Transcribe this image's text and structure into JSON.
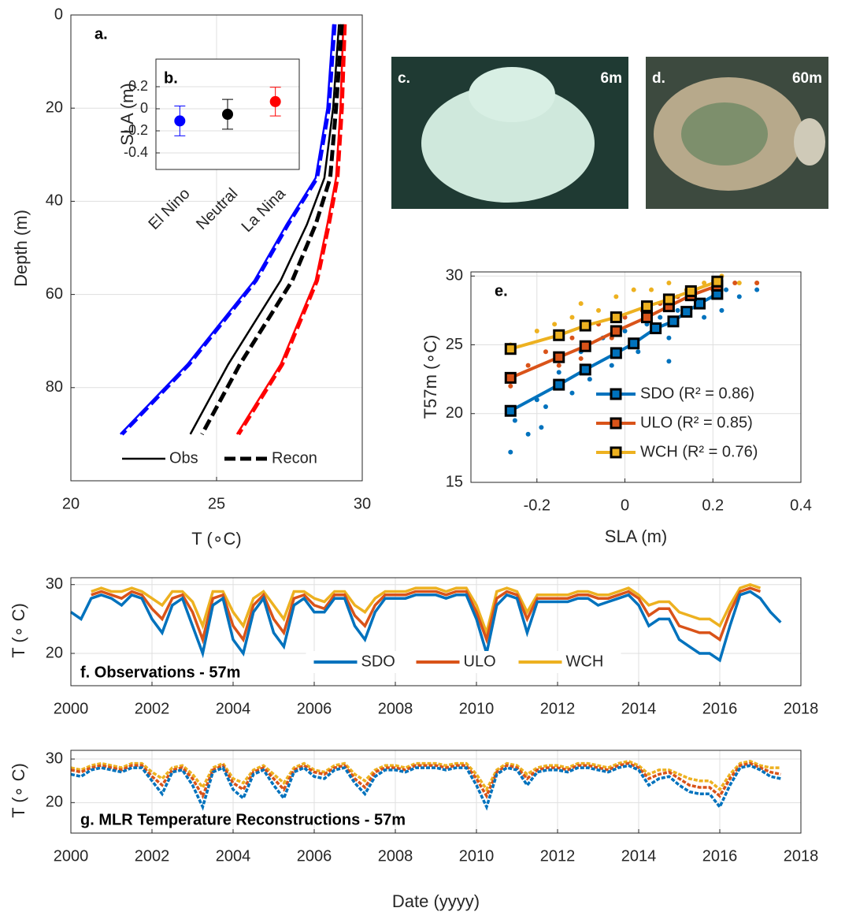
{
  "chart_data": [
    {
      "type": "line",
      "label": "a.",
      "xlabel": "T (∘C)",
      "ylabel": "Depth (m)",
      "xlim": [
        20,
        30
      ],
      "ylim": [
        0,
        100
      ],
      "yreverse": true,
      "xticks": [
        20,
        25,
        30
      ],
      "yticks": [
        0,
        20,
        40,
        60,
        80
      ],
      "grid": true,
      "legend": [
        {
          "label": "Obs",
          "dash": false
        },
        {
          "label": "Recon",
          "dash": true
        }
      ],
      "legend_loc": "south",
      "series": [
        {
          "color": "#0000ff",
          "dash": false,
          "x": [
            29.0,
            28.8,
            28.4,
            27.4,
            26.3,
            24.0,
            21.7
          ],
          "y": [
            2,
            20,
            35,
            45,
            57,
            75,
            90
          ]
        },
        {
          "color": "#0000ff",
          "dash": true,
          "x": [
            29.05,
            28.85,
            28.45,
            27.45,
            26.35,
            24.05,
            21.75
          ],
          "y": [
            2,
            20,
            35,
            45,
            57,
            75,
            90
          ]
        },
        {
          "color": "#000000",
          "dash": false,
          "x": [
            29.2,
            29.0,
            28.7,
            28.1,
            27.2,
            25.4,
            24.1
          ],
          "y": [
            2,
            20,
            35,
            45,
            57,
            75,
            90
          ]
        },
        {
          "color": "#000000",
          "dash": true,
          "x": [
            29.3,
            29.1,
            28.9,
            28.4,
            27.6,
            25.8,
            24.5
          ],
          "y": [
            2,
            20,
            35,
            45,
            57,
            75,
            90
          ]
        },
        {
          "color": "#ff0000",
          "dash": false,
          "x": [
            29.35,
            29.25,
            29.1,
            28.8,
            28.4,
            27.2,
            25.7
          ],
          "y": [
            2,
            20,
            35,
            45,
            57,
            75,
            90
          ]
        },
        {
          "color": "#ff0000",
          "dash": true,
          "x": [
            29.4,
            29.3,
            29.15,
            28.85,
            28.45,
            27.25,
            25.75
          ],
          "y": [
            2,
            20,
            35,
            45,
            57,
            75,
            90
          ]
        }
      ]
    },
    {
      "type": "errorbar",
      "label": "b.",
      "ylabel": "SLA (m)",
      "inset": true,
      "categories": [
        "El Nino",
        "Neutral",
        "La Nina"
      ],
      "values": [
        -0.11,
        -0.05,
        0.065
      ],
      "errors": [
        0.135,
        0.135,
        0.13
      ],
      "colors": [
        "#0000ff",
        "#000000",
        "#ff0000"
      ],
      "ylim": [
        -0.55,
        0.45
      ],
      "yticks": [
        -0.4,
        -0.2,
        0,
        0.2
      ],
      "grid": true
    },
    {
      "type": "scatter",
      "label": "e.",
      "xlabel": "SLA (m)",
      "ylabel": "T57m (∘C)",
      "xlim": [
        -0.35,
        0.4
      ],
      "ylim": [
        15,
        30.3
      ],
      "xticks": [
        -0.2,
        0,
        0.2,
        0.4
      ],
      "yticks": [
        15,
        20,
        25,
        30
      ],
      "grid": true,
      "legend_loc": "southeast",
      "series": [
        {
          "name": "SDO (R² = 0.86)",
          "color": "#0072bd",
          "x": [
            -0.26,
            -0.15,
            -0.09,
            -0.02,
            0.02,
            0.07,
            0.11,
            0.14,
            0.17,
            0.21
          ],
          "y": [
            20.2,
            22.1,
            23.2,
            24.4,
            25.1,
            26.2,
            26.7,
            27.4,
            28.0,
            28.7
          ],
          "scatter_x": [
            -0.26,
            -0.25,
            -0.22,
            -0.2,
            -0.18,
            -0.15,
            -0.12,
            -0.1,
            -0.08,
            -0.05,
            -0.03,
            0,
            0.03,
            0.05,
            0.08,
            0.1,
            0.12,
            0.15,
            0.18,
            0.2,
            0.23,
            0.26,
            0.3,
            0.22,
            0.1,
            -0.19
          ],
          "scatter_y": [
            17.2,
            19.5,
            18.5,
            21,
            20.5,
            23,
            21.5,
            24.5,
            22.5,
            25.5,
            23.5,
            26,
            24.5,
            26.5,
            27,
            25.5,
            27.5,
            28.5,
            27,
            28.5,
            29,
            28.5,
            29,
            27.5,
            23.8,
            19
          ]
        },
        {
          "name": "ULO (R² = 0.85)",
          "color": "#d95319",
          "x": [
            -0.26,
            -0.15,
            -0.09,
            -0.02,
            0.05,
            0.1,
            0.15,
            0.21
          ],
          "y": [
            22.6,
            24.1,
            24.9,
            26.0,
            27.0,
            27.8,
            28.6,
            29.3
          ],
          "scatter_x": [
            -0.26,
            -0.22,
            -0.18,
            -0.15,
            -0.12,
            -0.1,
            -0.06,
            -0.03,
            0,
            0.04,
            0.08,
            0.12,
            0.16,
            0.2,
            0.25,
            0.3
          ],
          "scatter_y": [
            22,
            23.5,
            24.5,
            23.5,
            25.5,
            24,
            26.5,
            25.5,
            27,
            27.5,
            28,
            28.5,
            29,
            29,
            29.5,
            29.5
          ]
        },
        {
          "name": "WCH (R² = 0.76)",
          "color": "#edb120",
          "x": [
            -0.26,
            -0.15,
            -0.09,
            -0.02,
            0.05,
            0.1,
            0.15,
            0.21
          ],
          "y": [
            24.7,
            25.7,
            26.4,
            27.0,
            27.8,
            28.3,
            28.9,
            29.6
          ],
          "scatter_x": [
            -0.26,
            -0.2,
            -0.16,
            -0.12,
            -0.1,
            -0.06,
            -0.02,
            0.02,
            0.06,
            0.1,
            0.14,
            0.18,
            0.22,
            0.26,
            0.3
          ],
          "scatter_y": [
            25,
            26,
            26.5,
            27,
            28,
            27.5,
            28.5,
            29,
            29,
            29.5,
            29,
            29.5,
            30,
            29.5,
            29.5
          ]
        }
      ]
    },
    {
      "type": "line",
      "title": "f. Observations - 57m",
      "ylabel": "T (∘ C)",
      "xlim": [
        2000,
        2018
      ],
      "ylim": [
        15.3,
        31
      ],
      "xticks": [
        2000,
        2002,
        2004,
        2006,
        2008,
        2010,
        2012,
        2014,
        2016,
        2018
      ],
      "yticks": [
        20,
        30
      ],
      "grid": true,
      "legend_loc": "south",
      "x": [
        2000,
        2000.25,
        2000.5,
        2000.75,
        2001,
        2001.25,
        2001.5,
        2001.75,
        2002,
        2002.25,
        2002.5,
        2002.75,
        2003,
        2003.25,
        2003.5,
        2003.75,
        2004,
        2004.25,
        2004.5,
        2004.75,
        2005,
        2005.25,
        2005.5,
        2005.75,
        2006,
        2006.25,
        2006.5,
        2006.75,
        2007,
        2007.25,
        2007.5,
        2007.75,
        2008,
        2008.25,
        2008.5,
        2008.75,
        2009,
        2009.25,
        2009.5,
        2009.75,
        2010,
        2010.25,
        2010.5,
        2010.75,
        2011,
        2011.25,
        2011.5,
        2011.75,
        2012,
        2012.25,
        2012.5,
        2012.75,
        2013,
        2013.25,
        2013.5,
        2013.75,
        2014,
        2014.25,
        2014.5,
        2014.75,
        2015,
        2015.25,
        2015.5,
        2015.75,
        2016,
        2016.25,
        2016.5,
        2016.75,
        2017,
        2017.25,
        2017.5
      ],
      "series": [
        {
          "name": "SDO",
          "color": "#0072bd",
          "dash": false,
          "values": [
            26,
            25,
            28,
            28.5,
            28,
            27,
            28.5,
            28,
            25,
            23,
            27,
            28,
            24,
            20,
            27,
            28,
            22,
            20,
            26,
            28,
            23,
            21,
            27,
            28,
            26,
            26,
            28,
            28,
            24,
            22,
            26,
            28,
            28,
            28,
            28.5,
            28.5,
            28.5,
            28,
            28.5,
            28.5,
            25,
            20,
            27,
            28.5,
            28,
            23,
            27.5,
            27.5,
            27.5,
            27.5,
            28,
            28,
            27,
            27.5,
            28,
            28.5,
            27,
            24,
            25,
            25,
            22,
            21,
            20,
            20,
            19,
            24,
            28.5,
            29,
            28,
            26,
            24.5
          ]
        },
        {
          "name": "ULO",
          "color": "#d95319",
          "dash": false,
          "values": [
            null,
            null,
            28.5,
            29,
            28.5,
            28,
            29,
            28.5,
            26.5,
            25,
            28,
            28.5,
            26,
            22,
            28,
            28.5,
            24,
            22,
            27,
            28.5,
            25,
            23,
            28,
            28.5,
            27,
            26.5,
            28.5,
            28.5,
            25.5,
            24,
            27,
            28.5,
            28.5,
            28.5,
            29,
            29,
            29,
            28.5,
            29,
            29,
            26,
            22,
            28,
            29,
            28.5,
            25,
            28,
            28,
            28,
            28,
            28.5,
            28.5,
            28,
            28,
            28.5,
            29,
            28,
            25.5,
            26.5,
            26.5,
            24,
            23.5,
            23,
            23,
            22,
            26,
            29,
            29.5,
            29,
            null,
            null
          ]
        },
        {
          "name": "WCH",
          "color": "#edb120",
          "dash": false,
          "values": [
            null,
            null,
            29,
            29.5,
            29,
            29,
            29.5,
            29,
            28,
            27,
            29,
            29,
            27.5,
            24,
            29,
            29,
            26,
            24,
            28,
            29,
            27,
            25,
            29,
            29,
            28,
            27.5,
            29,
            29,
            27,
            26,
            28,
            29,
            29,
            29,
            29.5,
            29.5,
            29.5,
            29,
            29.5,
            29.5,
            27,
            23,
            29,
            29.5,
            29,
            26,
            28.5,
            28.5,
            28.5,
            28.5,
            29,
            29,
            28.5,
            28.5,
            29,
            29.5,
            28.5,
            27,
            27.5,
            27.5,
            26,
            25.5,
            25,
            25,
            24,
            27,
            29.5,
            30,
            29.5,
            null,
            null
          ]
        }
      ]
    },
    {
      "type": "line",
      "title": "g. MLR Temperature Reconstructions - 57m",
      "ylabel": "T (∘ C)",
      "xlabel": "Date (yyyy)",
      "xlim": [
        2000,
        2018
      ],
      "ylim": [
        13,
        32
      ],
      "xticks": [
        2000,
        2002,
        2004,
        2006,
        2008,
        2010,
        2012,
        2014,
        2016,
        2018
      ],
      "yticks": [
        20,
        30
      ],
      "grid": true,
      "x": [
        2000,
        2000.25,
        2000.5,
        2000.75,
        2001,
        2001.25,
        2001.5,
        2001.75,
        2002,
        2002.25,
        2002.5,
        2002.75,
        2003,
        2003.25,
        2003.5,
        2003.75,
        2004,
        2004.25,
        2004.5,
        2004.75,
        2005,
        2005.25,
        2005.5,
        2005.75,
        2006,
        2006.25,
        2006.5,
        2006.75,
        2007,
        2007.25,
        2007.5,
        2007.75,
        2008,
        2008.25,
        2008.5,
        2008.75,
        2009,
        2009.25,
        2009.5,
        2009.75,
        2010,
        2010.25,
        2010.5,
        2010.75,
        2011,
        2011.25,
        2011.5,
        2011.75,
        2012,
        2012.25,
        2012.5,
        2012.75,
        2013,
        2013.25,
        2013.5,
        2013.75,
        2014,
        2014.25,
        2014.5,
        2014.75,
        2015,
        2015.25,
        2015.5,
        2015.75,
        2016,
        2016.25,
        2016.5,
        2016.75,
        2017,
        2017.25,
        2017.5
      ],
      "series": [
        {
          "color": "#0072bd",
          "dash": true,
          "values": [
            26.5,
            26,
            27.5,
            28,
            27.5,
            27,
            28,
            28,
            25,
            22,
            27,
            27.5,
            24,
            19,
            27,
            28,
            23,
            21,
            26.5,
            27.5,
            24,
            21,
            27,
            28,
            26,
            25.5,
            27.5,
            28,
            24.5,
            22,
            26,
            27.5,
            27.5,
            27,
            28,
            28,
            28,
            27.5,
            28,
            28,
            24,
            19,
            26.5,
            28,
            27.5,
            24,
            27,
            27.5,
            27.5,
            27,
            28,
            28,
            27.5,
            27,
            28,
            28.5,
            27.5,
            24,
            25.5,
            26,
            24,
            22.5,
            22,
            22,
            19,
            24,
            28,
            28.5,
            27.5,
            26,
            25.5
          ]
        },
        {
          "color": "#d95319",
          "dash": true,
          "values": [
            27.5,
            27,
            28,
            28.5,
            28,
            27.5,
            28.5,
            28.5,
            26,
            24,
            27.5,
            28,
            25.5,
            21.5,
            27.5,
            28.5,
            24.5,
            23,
            27,
            28,
            25.5,
            23,
            27.5,
            28.5,
            27,
            26.5,
            28,
            28.5,
            25.5,
            23.5,
            27,
            28,
            28,
            27.5,
            28.5,
            28.5,
            28.5,
            28,
            28.5,
            28.5,
            25.5,
            21.5,
            27,
            28.5,
            28,
            25.5,
            27.5,
            28,
            28,
            27.5,
            28.5,
            28.5,
            28,
            27.5,
            28.5,
            29,
            28,
            25.5,
            26.5,
            27,
            25.5,
            24,
            23.5,
            23.5,
            21.5,
            25.5,
            28.5,
            29,
            28,
            27,
            26.5
          ]
        },
        {
          "color": "#edb120",
          "dash": true,
          "values": [
            28,
            27.5,
            28.5,
            29,
            28.5,
            28,
            29,
            29,
            27,
            25.5,
            28,
            28.5,
            26.5,
            23.5,
            28,
            29,
            25.5,
            24.5,
            27.5,
            28.5,
            26.5,
            24.5,
            28,
            29,
            27.5,
            27,
            28.5,
            29,
            26.5,
            25,
            27.5,
            28.5,
            28.5,
            28,
            29,
            29,
            29,
            28.5,
            29,
            29,
            26.5,
            23,
            27.5,
            29,
            28.5,
            26.5,
            28,
            28.5,
            28.5,
            28,
            29,
            29,
            28.5,
            28,
            29,
            29.5,
            28.5,
            26.5,
            27.5,
            27.5,
            26.5,
            25.5,
            25,
            25,
            23,
            26.5,
            29,
            29.5,
            28.5,
            28,
            28
          ]
        }
      ]
    }
  ],
  "photos": [
    {
      "label": "c.",
      "depth": "6m"
    },
    {
      "label": "d.",
      "depth": "60m"
    }
  ]
}
